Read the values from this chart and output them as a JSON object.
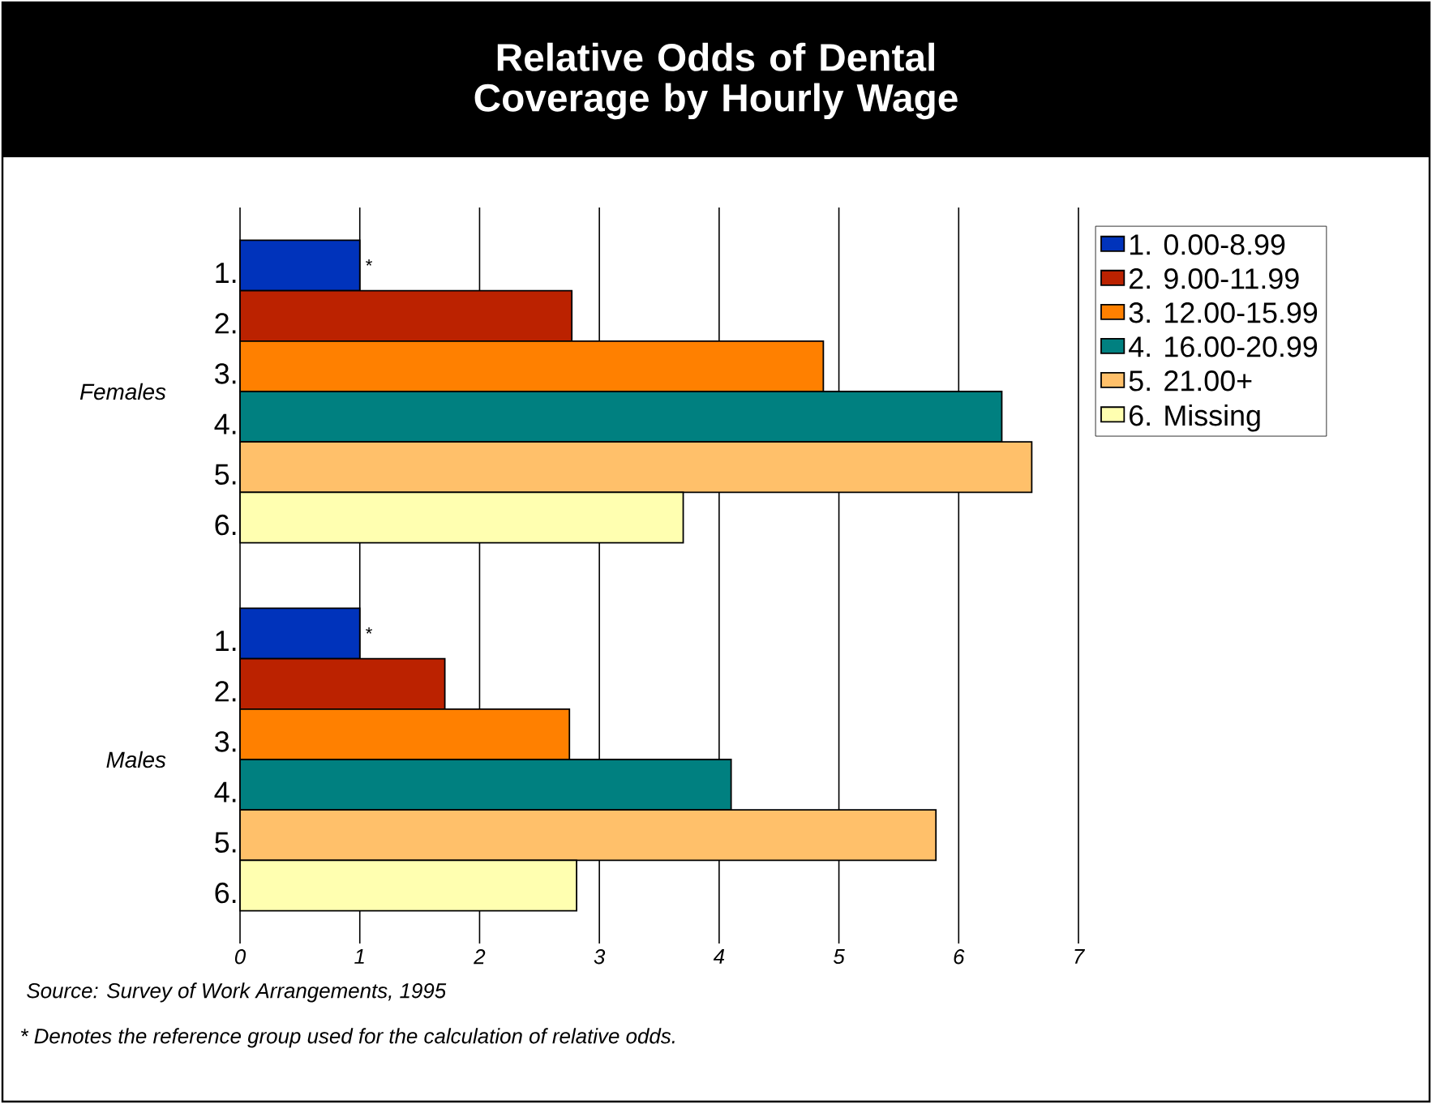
{
  "chart_data": {
    "type": "bar",
    "orientation": "horizontal",
    "title": "Relative Odds of Dental Coverage by Hourly Wage",
    "categories": [
      "Females",
      "Males"
    ],
    "series": [
      {
        "name": "1. 0.00-8.99",
        "color": "#0033bb",
        "values": [
          1,
          1
        ]
      },
      {
        "name": "2. 9.00-11.99",
        "color": "#bb2200",
        "values": [
          2.77,
          1.71
        ]
      },
      {
        "name": "3. 12.00-15.99",
        "color": "#ff8000",
        "values": [
          4.87,
          2.75
        ]
      },
      {
        "name": "4. 16.00-20.99",
        "color": "#008080",
        "values": [
          6.36,
          4.1
        ]
      },
      {
        "name": "5. 21.00+",
        "color": "#ffc06a",
        "values": [
          6.61,
          5.81
        ]
      },
      {
        "name": "6. Missing",
        "color": "#ffffb0",
        "values": [
          3.7,
          2.81
        ]
      }
    ],
    "xlim": [
      0,
      7
    ],
    "xticks": [
      0,
      1,
      2,
      3,
      4,
      5,
      6,
      7
    ],
    "grid": "x",
    "legend": "right",
    "annotations": [
      "*",
      "1.",
      "2.",
      "3.",
      "4.",
      "5.",
      "6.",
      "*",
      "1.",
      "2.",
      "3.",
      "4.",
      "5.",
      "6.",
      "Source: Survey of Work Arrangements, 1995",
      "* Denotes the reference group used for the calculation of relative odds."
    ]
  }
}
